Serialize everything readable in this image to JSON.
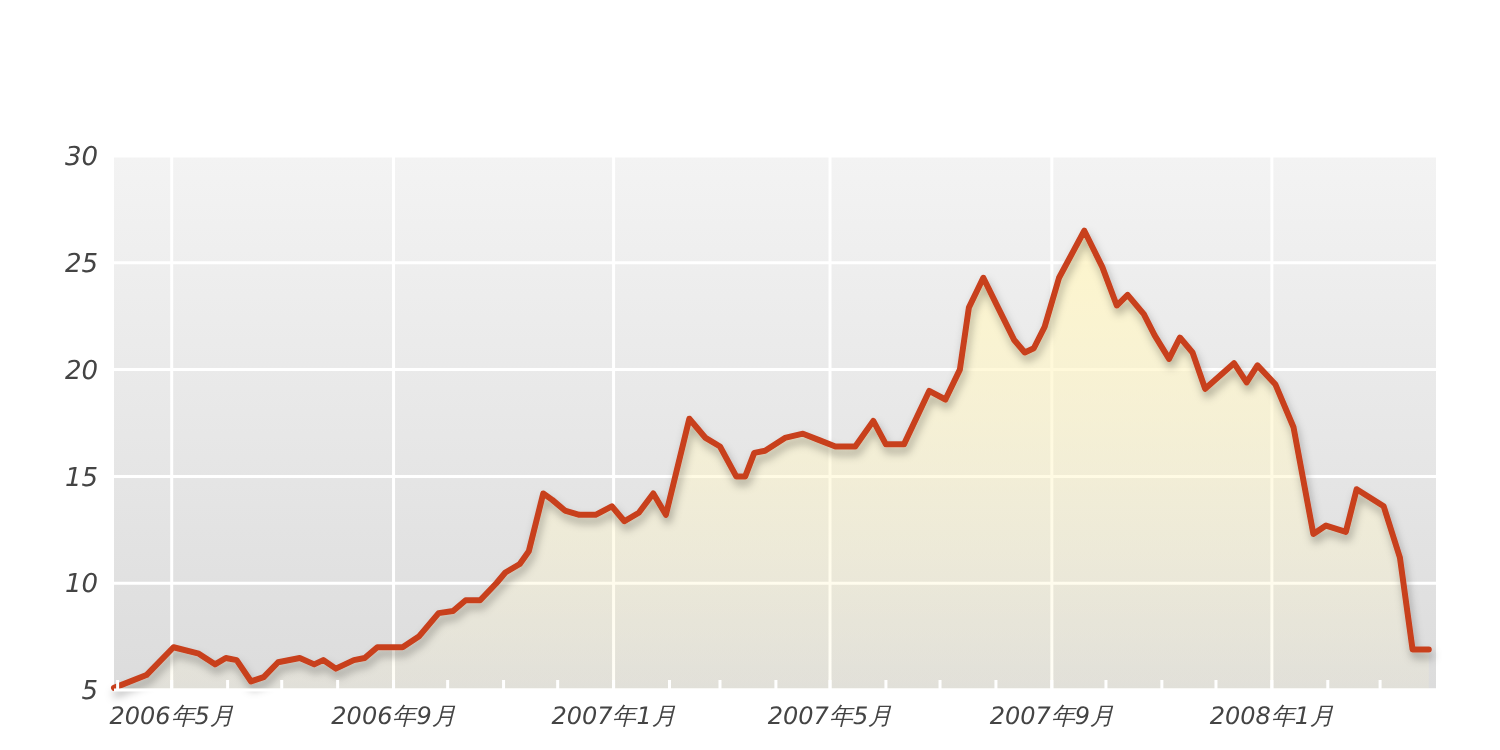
{
  "chart_data": {
    "type": "area",
    "xlim": [
      "2006-03-30",
      "2008-04-01"
    ],
    "ylim": [
      5,
      30
    ],
    "yticks": [
      5,
      10,
      15,
      20,
      25,
      30
    ],
    "xticks": [
      {
        "value": "2006-04-01",
        "label": null
      },
      {
        "value": "2006-05-01",
        "label": "2006年5月"
      },
      {
        "value": "2006-06-01",
        "label": null
      },
      {
        "value": "2006-07-01",
        "label": null
      },
      {
        "value": "2006-08-01",
        "label": null
      },
      {
        "value": "2006-09-01",
        "label": "2006年9月"
      },
      {
        "value": "2006-10-01",
        "label": null
      },
      {
        "value": "2006-11-01",
        "label": null
      },
      {
        "value": "2006-12-01",
        "label": null
      },
      {
        "value": "2007-01-01",
        "label": "2007年1月"
      },
      {
        "value": "2007-02-01",
        "label": null
      },
      {
        "value": "2007-03-01",
        "label": null
      },
      {
        "value": "2007-04-01",
        "label": null
      },
      {
        "value": "2007-05-01",
        "label": "2007年5月"
      },
      {
        "value": "2007-06-01",
        "label": null
      },
      {
        "value": "2007-07-01",
        "label": null
      },
      {
        "value": "2007-08-01",
        "label": null
      },
      {
        "value": "2007-09-01",
        "label": "2007年9月"
      },
      {
        "value": "2007-10-01",
        "label": null
      },
      {
        "value": "2007-11-01",
        "label": null
      },
      {
        "value": "2007-12-01",
        "label": null
      },
      {
        "value": "2008-01-01",
        "label": "2008年1月"
      },
      {
        "value": "2008-02-01",
        "label": null
      },
      {
        "value": "2008-03-01",
        "label": null
      }
    ],
    "grid": true,
    "marker": "none",
    "line_style": "solid",
    "x": [
      "2006-03-30",
      "2006-04-17",
      "2006-05-02",
      "2006-05-16",
      "2006-05-25",
      "2006-05-31",
      "2006-06-06",
      "2006-06-14",
      "2006-06-21",
      "2006-06-29",
      "2006-07-11",
      "2006-07-19",
      "2006-07-24",
      "2006-07-31",
      "2006-08-10",
      "2006-08-16",
      "2006-08-23",
      "2006-09-06",
      "2006-09-15",
      "2006-09-26",
      "2006-10-04",
      "2006-10-11",
      "2006-10-19",
      "2006-10-28",
      "2006-11-02",
      "2006-11-10",
      "2006-11-15",
      "2006-11-23",
      "2006-11-28",
      "2006-12-05",
      "2006-12-13",
      "2006-12-22",
      "2006-12-31",
      "2007-01-07",
      "2007-01-15",
      "2007-01-23",
      "2007-01-30",
      "2007-02-12",
      "2007-02-21",
      "2007-03-01",
      "2007-03-10",
      "2007-03-15",
      "2007-03-20",
      "2007-03-26",
      "2007-04-06",
      "2007-04-16",
      "2007-04-25",
      "2007-05-04",
      "2007-05-15",
      "2007-05-25",
      "2007-06-01",
      "2007-06-11",
      "2007-06-25",
      "2007-07-04",
      "2007-07-12",
      "2007-07-17",
      "2007-07-25",
      "2007-08-01",
      "2007-08-11",
      "2007-08-17",
      "2007-08-22",
      "2007-08-28",
      "2007-09-05",
      "2007-09-19",
      "2007-09-29",
      "2007-10-07",
      "2007-10-13",
      "2007-10-22",
      "2007-10-28",
      "2007-11-05",
      "2007-11-11",
      "2007-11-18",
      "2007-11-25",
      "2007-12-11",
      "2007-12-18",
      "2007-12-24",
      "2008-01-03",
      "2008-01-13",
      "2008-01-24",
      "2008-01-31",
      "2008-02-11",
      "2008-02-17",
      "2008-03-03",
      "2008-03-12",
      "2008-03-19",
      "2008-03-28"
    ],
    "series": [
      {
        "color": "#c8401f",
        "values": [
          5.1,
          5.7,
          7.0,
          6.7,
          6.2,
          6.5,
          6.4,
          5.4,
          5.6,
          6.3,
          6.5,
          6.2,
          6.4,
          6.0,
          6.4,
          6.5,
          7.0,
          7.0,
          7.5,
          8.6,
          8.7,
          9.2,
          9.2,
          10.0,
          10.5,
          10.9,
          11.5,
          14.2,
          13.9,
          13.4,
          13.2,
          13.2,
          13.6,
          12.9,
          13.3,
          14.2,
          13.2,
          17.7,
          16.8,
          16.4,
          15.0,
          15.0,
          16.1,
          16.2,
          16.8,
          17.0,
          16.7,
          16.4,
          16.4,
          17.6,
          16.5,
          16.5,
          19.0,
          18.6,
          20.0,
          22.9,
          24.3,
          23.1,
          21.4,
          20.8,
          21.0,
          22.0,
          24.3,
          26.5,
          24.8,
          23.0,
          23.5,
          22.6,
          21.6,
          20.5,
          21.5,
          20.8,
          19.1,
          20.3,
          19.4,
          20.2,
          19.3,
          17.3,
          12.3,
          12.7,
          12.4,
          14.4,
          13.6,
          11.2,
          6.9,
          6.9
        ]
      }
    ]
  }
}
